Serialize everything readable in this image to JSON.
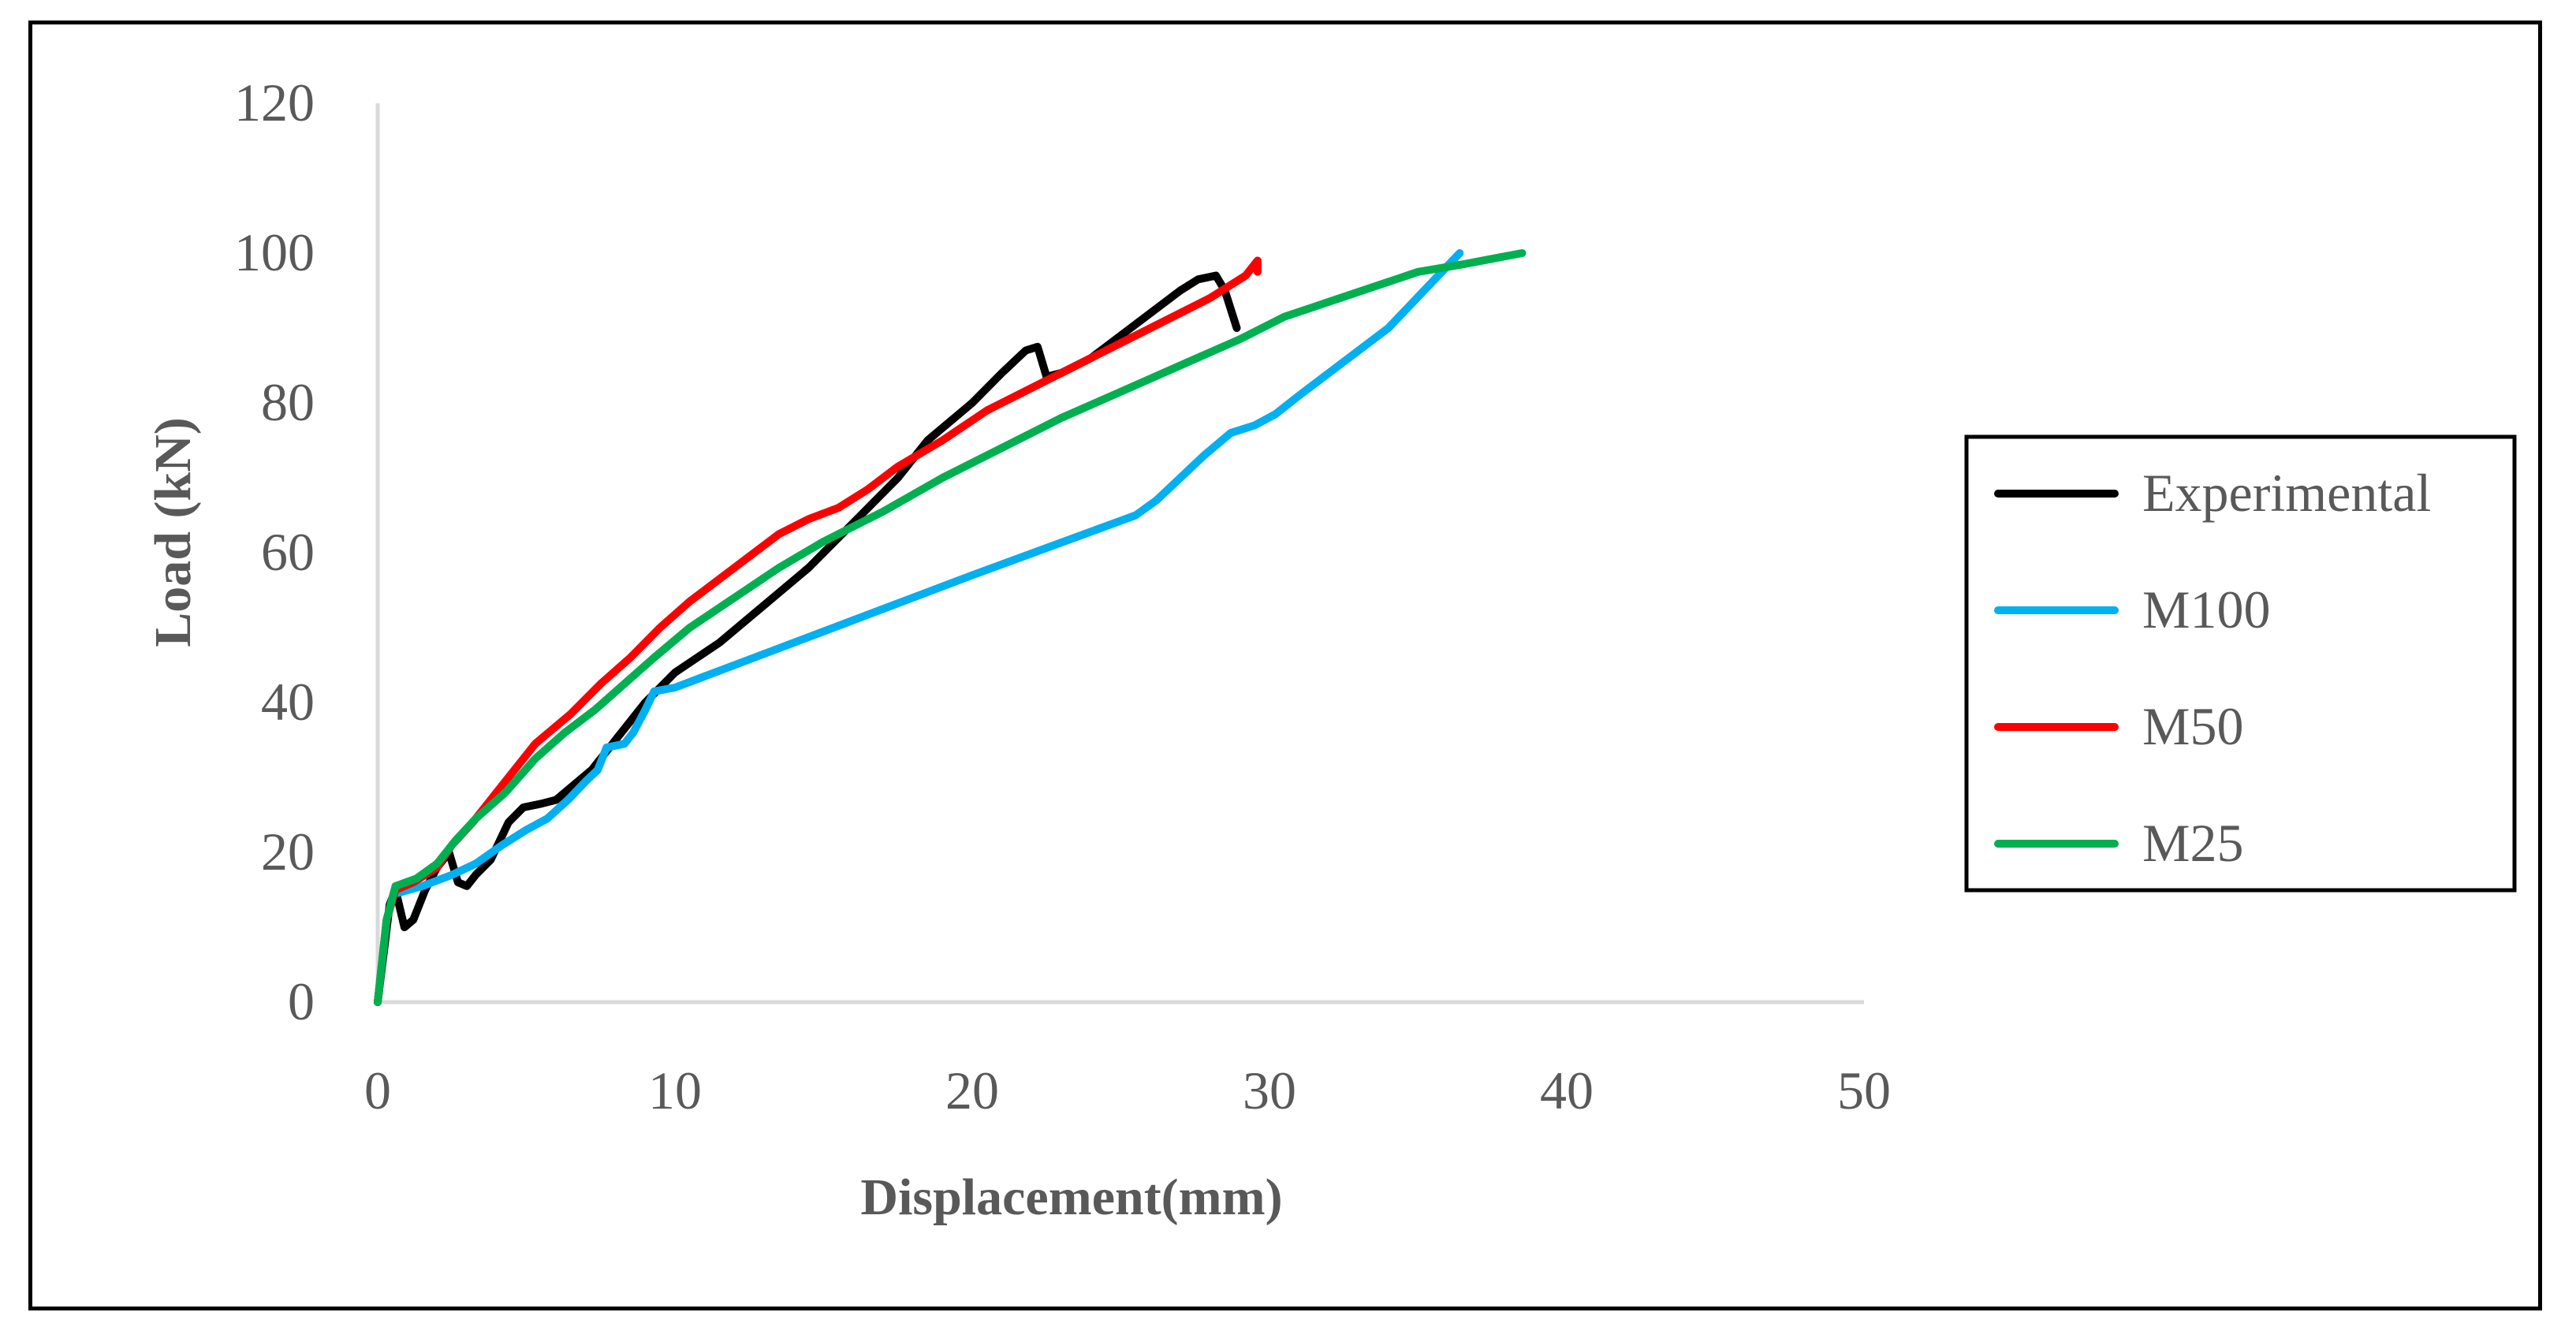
{
  "chart_data": {
    "type": "line",
    "title": "",
    "xlabel": "Displacement(mm)",
    "ylabel": "Load (kN)",
    "xlim": [
      0,
      50
    ],
    "ylim": [
      0,
      120
    ],
    "xticks": [
      0,
      10,
      20,
      30,
      40,
      50
    ],
    "yticks": [
      0,
      20,
      40,
      60,
      80,
      100,
      120
    ],
    "grid": false,
    "legend_position": "right",
    "series": [
      {
        "name": "Experimental",
        "color": "#000000",
        "points": [
          [
            0,
            0
          ],
          [
            0.4,
            13
          ],
          [
            0.6,
            15
          ],
          [
            0.9,
            10
          ],
          [
            1.2,
            11
          ],
          [
            1.6,
            15
          ],
          [
            2.0,
            18
          ],
          [
            2.4,
            20
          ],
          [
            2.7,
            16
          ],
          [
            3.0,
            15.5
          ],
          [
            3.3,
            17
          ],
          [
            3.8,
            19
          ],
          [
            4.4,
            24
          ],
          [
            4.9,
            26
          ],
          [
            5.5,
            26.5
          ],
          [
            6.0,
            27
          ],
          [
            6.6,
            29
          ],
          [
            7.2,
            31
          ],
          [
            8.0,
            35
          ],
          [
            9.0,
            40
          ],
          [
            10.0,
            44
          ],
          [
            11.5,
            48
          ],
          [
            13.0,
            53
          ],
          [
            14.5,
            58
          ],
          [
            16.0,
            64
          ],
          [
            17.5,
            70
          ],
          [
            18.5,
            75
          ],
          [
            20.0,
            80
          ],
          [
            21.0,
            84
          ],
          [
            21.8,
            87
          ],
          [
            22.2,
            87.5
          ],
          [
            22.5,
            83.5
          ],
          [
            23.0,
            84
          ],
          [
            24.0,
            86
          ],
          [
            25.0,
            89
          ],
          [
            26.0,
            92
          ],
          [
            27.0,
            95
          ],
          [
            27.6,
            96.5
          ],
          [
            28.2,
            97
          ],
          [
            28.5,
            95
          ],
          [
            28.9,
            90
          ]
        ]
      },
      {
        "name": "M100",
        "color": "#00b0f0",
        "points": [
          [
            0.6,
            14.5
          ],
          [
            1.5,
            15.5
          ],
          [
            2.5,
            17
          ],
          [
            3.3,
            18.5
          ],
          [
            4.2,
            21
          ],
          [
            5.0,
            23
          ],
          [
            5.7,
            24.5
          ],
          [
            6.4,
            27
          ],
          [
            7.0,
            29.5
          ],
          [
            7.4,
            31
          ],
          [
            7.7,
            34
          ],
          [
            8.3,
            34.5
          ],
          [
            8.6,
            36
          ],
          [
            9.0,
            39
          ],
          [
            9.3,
            41.5
          ],
          [
            10.0,
            42
          ],
          [
            12.0,
            45
          ],
          [
            15.0,
            49.5
          ],
          [
            20.0,
            57
          ],
          [
            25.5,
            65
          ],
          [
            26.2,
            67
          ],
          [
            27.0,
            70
          ],
          [
            27.8,
            73
          ],
          [
            28.7,
            76
          ],
          [
            29.5,
            77
          ],
          [
            30.2,
            78.5
          ],
          [
            31.0,
            81
          ],
          [
            32.0,
            84
          ],
          [
            34.0,
            90
          ],
          [
            36.4,
            100
          ]
        ]
      },
      {
        "name": "M50",
        "color": "#ff0000",
        "points": [
          [
            0,
            0
          ],
          [
            0.3,
            11
          ],
          [
            0.6,
            15
          ],
          [
            1.2,
            16
          ],
          [
            2.0,
            18
          ],
          [
            2.5,
            21
          ],
          [
            3.2,
            24
          ],
          [
            4.2,
            29
          ],
          [
            5.3,
            34.5
          ],
          [
            6.5,
            38.5
          ],
          [
            7.5,
            42.5
          ],
          [
            8.5,
            46
          ],
          [
            9.5,
            50
          ],
          [
            10.5,
            53.5
          ],
          [
            12.0,
            58
          ],
          [
            13.5,
            62.5
          ],
          [
            14.5,
            64.5
          ],
          [
            15.5,
            66
          ],
          [
            16.5,
            68.5
          ],
          [
            17.5,
            71.5
          ],
          [
            19.0,
            75
          ],
          [
            20.5,
            79
          ],
          [
            22.0,
            82
          ],
          [
            23.5,
            85
          ],
          [
            25.0,
            88
          ],
          [
            26.5,
            91
          ],
          [
            28.0,
            94
          ],
          [
            29.2,
            97
          ],
          [
            29.6,
            99
          ],
          [
            29.6,
            97.5
          ]
        ]
      },
      {
        "name": "M25",
        "color": "#00b050",
        "points": [
          [
            0,
            0
          ],
          [
            0.3,
            11
          ],
          [
            0.6,
            15.5
          ],
          [
            1.3,
            16.5
          ],
          [
            2.0,
            18.5
          ],
          [
            2.6,
            21.5
          ],
          [
            3.3,
            24.5
          ],
          [
            4.3,
            28
          ],
          [
            5.3,
            32.5
          ],
          [
            6.3,
            36
          ],
          [
            7.3,
            39
          ],
          [
            8.3,
            42.5
          ],
          [
            9.3,
            46
          ],
          [
            10.5,
            50
          ],
          [
            12.0,
            54
          ],
          [
            13.5,
            58
          ],
          [
            15.0,
            61.5
          ],
          [
            17.0,
            65.5
          ],
          [
            19.0,
            70
          ],
          [
            21.0,
            74
          ],
          [
            23.0,
            78
          ],
          [
            25.0,
            81.5
          ],
          [
            27.0,
            85
          ],
          [
            29.0,
            88.5
          ],
          [
            30.5,
            91.5
          ],
          [
            32.0,
            93.5
          ],
          [
            33.5,
            95.5
          ],
          [
            35.0,
            97.5
          ],
          [
            36.5,
            98.5
          ],
          [
            38.5,
            100
          ]
        ]
      }
    ]
  }
}
